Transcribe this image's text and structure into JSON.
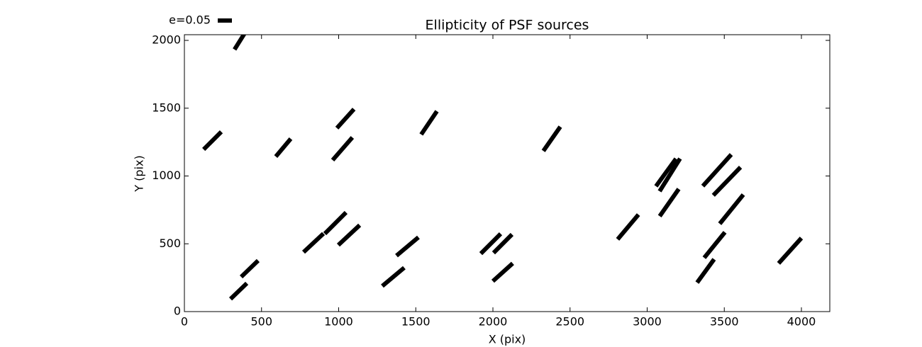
{
  "chart_data": {
    "type": "whisker",
    "title": "Ellipticity of PSF sources",
    "x_label": "X (pix)",
    "y_label": "Y (pix)",
    "key": {
      "value": 0.05,
      "label": "e=0.05"
    },
    "color": "#000000",
    "x": [
      359,
      182,
      641,
      1044,
      1025,
      1586,
      2382,
      352,
      423,
      837,
      979,
      1067,
      1354,
      1446,
      1986,
      2064,
      2064,
      2876,
      3122,
      3147,
      3143,
      3453,
      3517,
      3547,
      3437,
      3379,
      3926
    ],
    "y": [
      1995,
      1261,
      1209,
      1423,
      1201,
      1392,
      1274,
      151,
      316,
      507,
      653,
      564,
      256,
      480,
      501,
      501,
      290,
      624,
      1026,
      1008,
      804,
      1042,
      961,
      755,
      491,
      300,
      449
    ],
    "e": [
      0.07,
      0.088,
      0.082,
      0.09,
      0.106,
      0.099,
      0.104,
      0.08,
      0.083,
      0.096,
      0.106,
      0.103,
      0.101,
      0.101,
      0.099,
      0.092,
      0.094,
      0.114,
      0.12,
      0.136,
      0.117,
      0.15,
      0.138,
      0.132,
      0.116,
      0.102,
      0.12
    ],
    "angle": [
      58,
      45,
      50,
      48,
      49,
      56,
      55,
      44,
      44,
      43,
      45,
      43,
      40,
      40,
      45,
      45,
      42,
      50,
      54,
      58,
      55,
      48,
      46,
      51,
      51,
      54,
      48
    ],
    "xlim": [
      0,
      4184
    ],
    "ylim": [
      0,
      2042
    ],
    "xticks": [
      0,
      500,
      1000,
      1500,
      2000,
      2500,
      3000,
      3500,
      4000
    ],
    "yticks": [
      0,
      500,
      1000,
      1500,
      2000
    ]
  }
}
